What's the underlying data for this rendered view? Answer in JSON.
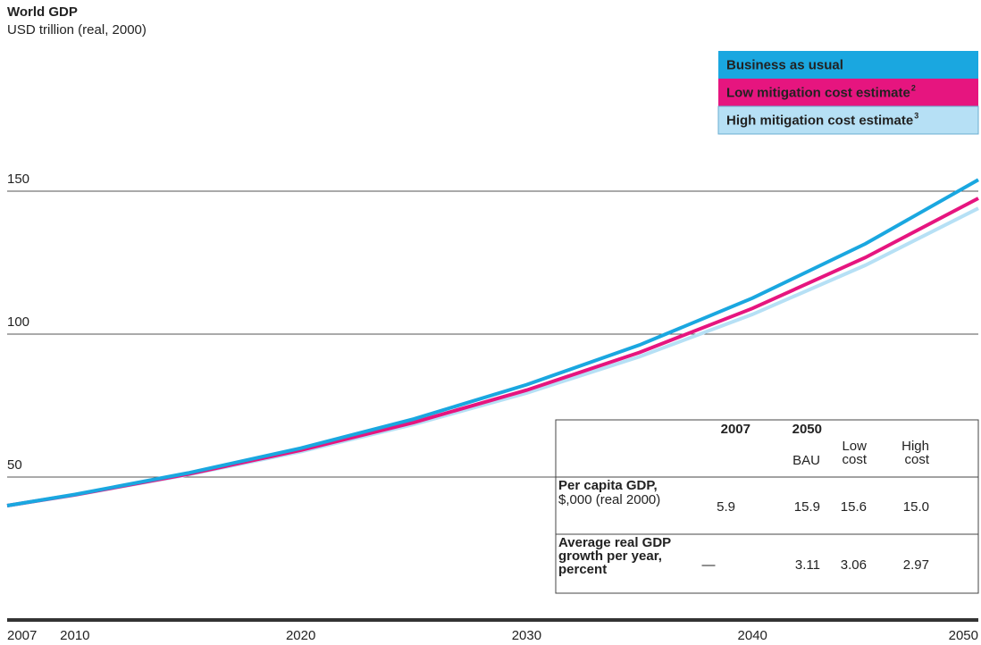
{
  "chart_data": {
    "type": "line",
    "title": "World GDP",
    "subtitle": "USD trillion (real, 2000)",
    "x": [
      2007,
      2010,
      2015,
      2020,
      2025,
      2030,
      2035,
      2040,
      2045,
      2050
    ],
    "xlim": [
      2007,
      2050
    ],
    "xticks": [
      2007,
      2010,
      2020,
      2030,
      2040,
      2050
    ],
    "ylim": [
      0,
      200
    ],
    "yticks": [
      50,
      100,
      150
    ],
    "grid": true,
    "legend": "top-right",
    "series": [
      {
        "name": "Business as usual",
        "color": "#1aa7e0",
        "values": [
          40,
          43.9,
          51.4,
          60.1,
          70.3,
          82.3,
          96.2,
          112.6,
          131.6,
          154
        ]
      },
      {
        "name": "Low mitigation cost estimate",
        "note": "2",
        "color": "#e6157f",
        "values": [
          40,
          43.8,
          51.0,
          59.4,
          69.1,
          80.4,
          93.6,
          109.0,
          126.8,
          147.5
        ]
      },
      {
        "name": "High mitigation cost estimate",
        "note": "3",
        "color": "#b6e0f5",
        "values": [
          40,
          43.7,
          50.8,
          58.9,
          68.4,
          79.4,
          92.1,
          106.9,
          124.1,
          144
        ]
      }
    ],
    "table": {
      "header": [
        "2007",
        "2050"
      ],
      "subheader": [
        "BAU",
        "Low cost",
        "High cost"
      ],
      "rows": [
        {
          "label": "Per capita GDP,",
          "sublabel": "$,000 (real 2000)",
          "cells": [
            "5.9",
            "15.9",
            "15.6",
            "15.0"
          ]
        },
        {
          "label": "Average real GDP growth per year, percent",
          "cells": [
            "—",
            "3.11",
            "3.06",
            "2.97"
          ]
        }
      ]
    }
  }
}
